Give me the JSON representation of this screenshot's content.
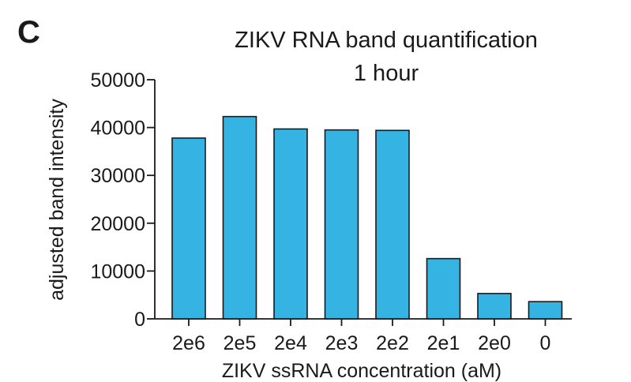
{
  "panel_label": "C",
  "chart_data": {
    "type": "bar",
    "title": "ZIKV RNA band quantification",
    "subtitle": "1 hour",
    "xlabel": "ZIKV ssRNA concentration (aM)",
    "ylabel": "adjusted band intensity",
    "categories": [
      "2e6",
      "2e5",
      "2e4",
      "2e3",
      "2e2",
      "2e1",
      "2e0",
      "0"
    ],
    "values": [
      37800,
      42300,
      39700,
      39500,
      39400,
      12600,
      5300,
      3600
    ],
    "ylim": [
      0,
      50000
    ],
    "yticks": [
      0,
      10000,
      20000,
      30000,
      40000,
      50000
    ],
    "ytick_labels": [
      "0",
      "10000",
      "20000",
      "30000",
      "40000",
      "50000"
    ],
    "bar_color": "#35b3e3",
    "bar_edge_color": "#1a1a1a",
    "grid": false,
    "legend": "none"
  }
}
